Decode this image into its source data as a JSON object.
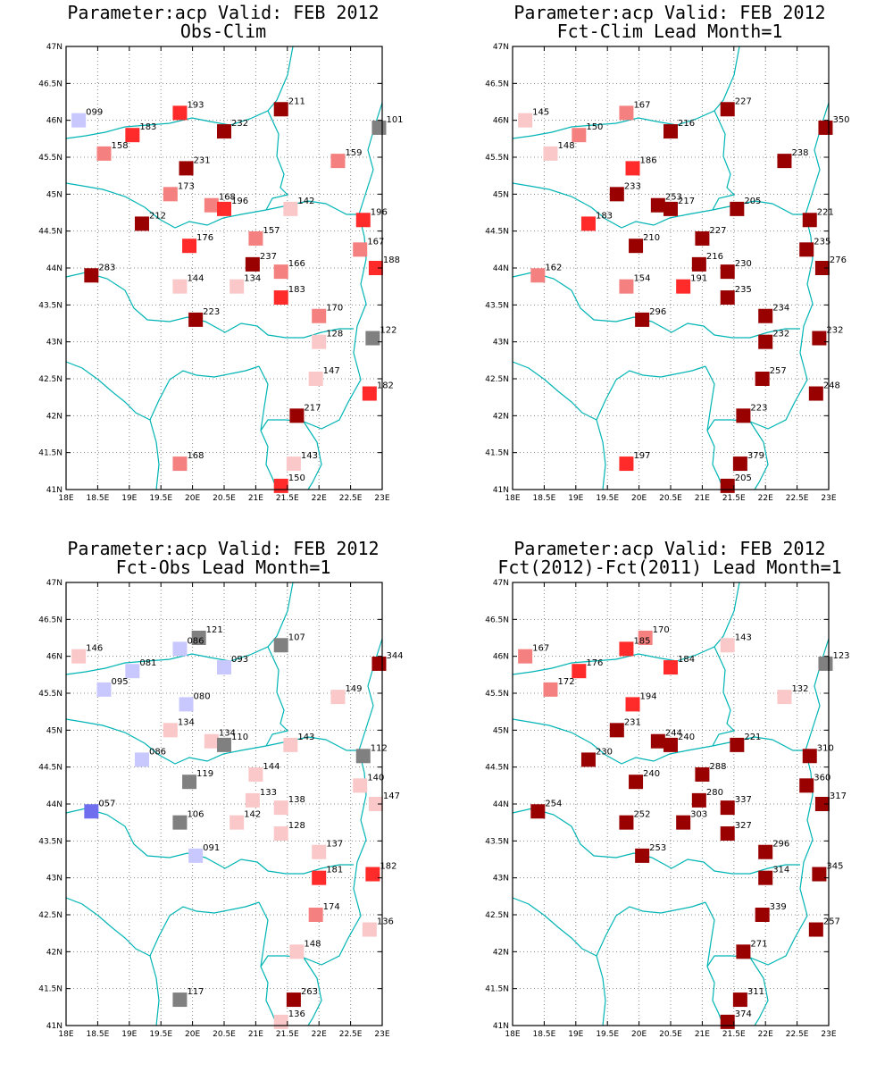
{
  "lon_ticks": [
    "18E",
    "18.5E",
    "19E",
    "19.5E",
    "20E",
    "20.5E",
    "21E",
    "21.5E",
    "22E",
    "22.5E",
    "23E"
  ],
  "lat_ticks": [
    "41N",
    "41.5N",
    "42N",
    "42.5N",
    "43N",
    "43.5N",
    "44N",
    "44.5N",
    "45N",
    "45.5N",
    "46N",
    "46.5N",
    "47N"
  ],
  "colors": {
    "coastline": "#00b4b4",
    "dark_red": "#990000",
    "red": "#ff2a2a",
    "salmon": "#f58080",
    "pink": "#fac8c8",
    "gray": "#808080",
    "lavender": "#c8c8ff",
    "blue": "#6e6eee"
  },
  "chart_data": [
    {
      "type": "map",
      "title": "Parameter:acp Valid: FEB 2012",
      "subtitle": "Obs-Clim",
      "xlim": [
        18,
        23
      ],
      "ylim": [
        41,
        47
      ],
      "stations": [
        {
          "lon": 18.2,
          "lat": 46.0,
          "label": "099",
          "color": "lavender"
        },
        {
          "lon": 19.8,
          "lat": 46.1,
          "label": "193",
          "color": "red"
        },
        {
          "lon": 21.4,
          "lat": 46.15,
          "label": "211",
          "color": "dark_red"
        },
        {
          "lon": 22.95,
          "lat": 45.9,
          "label": "101",
          "color": "gray"
        },
        {
          "lon": 19.05,
          "lat": 45.8,
          "label": "183",
          "color": "red"
        },
        {
          "lon": 20.5,
          "lat": 45.85,
          "label": "232",
          "color": "dark_red"
        },
        {
          "lon": 18.6,
          "lat": 45.55,
          "label": "158",
          "color": "salmon"
        },
        {
          "lon": 22.3,
          "lat": 45.45,
          "label": "159",
          "color": "salmon"
        },
        {
          "lon": 19.9,
          "lat": 45.35,
          "label": "231",
          "color": "dark_red"
        },
        {
          "lon": 19.65,
          "lat": 45.0,
          "label": "173",
          "color": "salmon"
        },
        {
          "lon": 20.3,
          "lat": 44.85,
          "label": "168",
          "color": "salmon"
        },
        {
          "lon": 20.5,
          "lat": 44.8,
          "label": "196",
          "color": "red"
        },
        {
          "lon": 21.55,
          "lat": 44.8,
          "label": "142",
          "color": "pink"
        },
        {
          "lon": 22.7,
          "lat": 44.65,
          "label": "196",
          "color": "red"
        },
        {
          "lon": 19.2,
          "lat": 44.6,
          "label": "212",
          "color": "dark_red"
        },
        {
          "lon": 21.0,
          "lat": 44.4,
          "label": "157",
          "color": "salmon"
        },
        {
          "lon": 19.95,
          "lat": 44.3,
          "label": "176",
          "color": "red"
        },
        {
          "lon": 22.65,
          "lat": 44.25,
          "label": "167",
          "color": "salmon"
        },
        {
          "lon": 20.95,
          "lat": 44.05,
          "label": "237",
          "color": "dark_red"
        },
        {
          "lon": 21.4,
          "lat": 43.95,
          "label": "166",
          "color": "salmon"
        },
        {
          "lon": 22.9,
          "lat": 44.0,
          "label": "188",
          "color": "red"
        },
        {
          "lon": 18.4,
          "lat": 43.9,
          "label": "283",
          "color": "dark_red"
        },
        {
          "lon": 19.8,
          "lat": 43.75,
          "label": "144",
          "color": "pink"
        },
        {
          "lon": 20.7,
          "lat": 43.75,
          "label": "134",
          "color": "pink"
        },
        {
          "lon": 21.4,
          "lat": 43.6,
          "label": "183",
          "color": "red"
        },
        {
          "lon": 22.0,
          "lat": 43.35,
          "label": "170",
          "color": "salmon"
        },
        {
          "lon": 20.05,
          "lat": 43.3,
          "label": "223",
          "color": "dark_red"
        },
        {
          "lon": 22.0,
          "lat": 43.0,
          "label": "128",
          "color": "pink"
        },
        {
          "lon": 22.85,
          "lat": 43.05,
          "label": "122",
          "color": "gray"
        },
        {
          "lon": 21.95,
          "lat": 42.5,
          "label": "147",
          "color": "pink"
        },
        {
          "lon": 22.8,
          "lat": 42.3,
          "label": "182",
          "color": "red"
        },
        {
          "lon": 21.65,
          "lat": 42.0,
          "label": "217",
          "color": "dark_red"
        },
        {
          "lon": 19.8,
          "lat": 41.35,
          "label": "168",
          "color": "salmon"
        },
        {
          "lon": 21.6,
          "lat": 41.35,
          "label": "143",
          "color": "pink"
        },
        {
          "lon": 21.4,
          "lat": 41.05,
          "label": "150",
          "color": "red"
        }
      ]
    },
    {
      "type": "map",
      "title": "Parameter:acp Valid: FEB 2012",
      "subtitle": "Fct-Clim Lead Month=1",
      "xlim": [
        18,
        23
      ],
      "ylim": [
        41,
        47
      ],
      "stations": [
        {
          "lon": 18.2,
          "lat": 46.0,
          "label": "145",
          "color": "pink"
        },
        {
          "lon": 19.8,
          "lat": 46.1,
          "label": "167",
          "color": "salmon"
        },
        {
          "lon": 21.4,
          "lat": 46.15,
          "label": "227",
          "color": "dark_red"
        },
        {
          "lon": 22.95,
          "lat": 45.9,
          "label": "350",
          "color": "dark_red"
        },
        {
          "lon": 19.05,
          "lat": 45.8,
          "label": "150",
          "color": "salmon"
        },
        {
          "lon": 20.5,
          "lat": 45.85,
          "label": "216",
          "color": "dark_red"
        },
        {
          "lon": 18.6,
          "lat": 45.55,
          "label": "148",
          "color": "pink"
        },
        {
          "lon": 22.3,
          "lat": 45.45,
          "label": "238",
          "color": "dark_red"
        },
        {
          "lon": 19.9,
          "lat": 45.35,
          "label": "186",
          "color": "red"
        },
        {
          "lon": 19.65,
          "lat": 45.0,
          "label": "233",
          "color": "dark_red"
        },
        {
          "lon": 20.3,
          "lat": 44.85,
          "label": "253",
          "color": "dark_red"
        },
        {
          "lon": 20.5,
          "lat": 44.8,
          "label": "217",
          "color": "dark_red"
        },
        {
          "lon": 21.55,
          "lat": 44.8,
          "label": "205",
          "color": "dark_red"
        },
        {
          "lon": 22.7,
          "lat": 44.65,
          "label": "221",
          "color": "dark_red"
        },
        {
          "lon": 19.2,
          "lat": 44.6,
          "label": "183",
          "color": "red"
        },
        {
          "lon": 21.0,
          "lat": 44.4,
          "label": "227",
          "color": "dark_red"
        },
        {
          "lon": 19.95,
          "lat": 44.3,
          "label": "210",
          "color": "dark_red"
        },
        {
          "lon": 22.65,
          "lat": 44.25,
          "label": "235",
          "color": "dark_red"
        },
        {
          "lon": 20.95,
          "lat": 44.05,
          "label": "216",
          "color": "dark_red"
        },
        {
          "lon": 21.4,
          "lat": 43.95,
          "label": "230",
          "color": "dark_red"
        },
        {
          "lon": 22.9,
          "lat": 44.0,
          "label": "276",
          "color": "dark_red"
        },
        {
          "lon": 18.4,
          "lat": 43.9,
          "label": "162",
          "color": "salmon"
        },
        {
          "lon": 19.8,
          "lat": 43.75,
          "label": "154",
          "color": "salmon"
        },
        {
          "lon": 20.7,
          "lat": 43.75,
          "label": "191",
          "color": "red"
        },
        {
          "lon": 21.4,
          "lat": 43.6,
          "label": "235",
          "color": "dark_red"
        },
        {
          "lon": 22.0,
          "lat": 43.35,
          "label": "234",
          "color": "dark_red"
        },
        {
          "lon": 20.05,
          "lat": 43.3,
          "label": "296",
          "color": "dark_red"
        },
        {
          "lon": 22.0,
          "lat": 43.0,
          "label": "232",
          "color": "dark_red"
        },
        {
          "lon": 22.85,
          "lat": 43.05,
          "label": "232",
          "color": "dark_red"
        },
        {
          "lon": 21.95,
          "lat": 42.5,
          "label": "257",
          "color": "dark_red"
        },
        {
          "lon": 22.8,
          "lat": 42.3,
          "label": "248",
          "color": "dark_red"
        },
        {
          "lon": 21.65,
          "lat": 42.0,
          "label": "223",
          "color": "dark_red"
        },
        {
          "lon": 19.8,
          "lat": 41.35,
          "label": "197",
          "color": "red"
        },
        {
          "lon": 21.6,
          "lat": 41.35,
          "label": "379",
          "color": "dark_red"
        },
        {
          "lon": 21.4,
          "lat": 41.05,
          "label": "205",
          "color": "dark_red"
        }
      ]
    },
    {
      "type": "map",
      "title": "Parameter:acp Valid: FEB 2012",
      "subtitle": "Fct-Obs Lead Month=1",
      "xlim": [
        18,
        23
      ],
      "ylim": [
        41,
        47
      ],
      "stations": [
        {
          "lon": 18.2,
          "lat": 46.0,
          "label": "146",
          "color": "pink"
        },
        {
          "lon": 20.1,
          "lat": 46.25,
          "label": "121",
          "color": "gray"
        },
        {
          "lon": 19.8,
          "lat": 46.1,
          "label": "086",
          "color": "lavender"
        },
        {
          "lon": 21.4,
          "lat": 46.15,
          "label": "107",
          "color": "gray"
        },
        {
          "lon": 22.95,
          "lat": 45.9,
          "label": "344",
          "color": "dark_red"
        },
        {
          "lon": 19.05,
          "lat": 45.8,
          "label": "081",
          "color": "lavender"
        },
        {
          "lon": 20.5,
          "lat": 45.85,
          "label": "093",
          "color": "lavender"
        },
        {
          "lon": 18.6,
          "lat": 45.55,
          "label": "095",
          "color": "lavender"
        },
        {
          "lon": 22.3,
          "lat": 45.45,
          "label": "149",
          "color": "pink"
        },
        {
          "lon": 19.9,
          "lat": 45.35,
          "label": "080",
          "color": "lavender"
        },
        {
          "lon": 19.65,
          "lat": 45.0,
          "label": "134",
          "color": "pink"
        },
        {
          "lon": 20.3,
          "lat": 44.85,
          "label": "134",
          "color": "pink"
        },
        {
          "lon": 20.5,
          "lat": 44.8,
          "label": "110",
          "color": "gray"
        },
        {
          "lon": 21.55,
          "lat": 44.8,
          "label": "143",
          "color": "pink"
        },
        {
          "lon": 22.7,
          "lat": 44.65,
          "label": "112",
          "color": "gray"
        },
        {
          "lon": 19.2,
          "lat": 44.6,
          "label": "086",
          "color": "lavender"
        },
        {
          "lon": 21.0,
          "lat": 44.4,
          "label": "144",
          "color": "pink"
        },
        {
          "lon": 19.95,
          "lat": 44.3,
          "label": "119",
          "color": "gray"
        },
        {
          "lon": 22.65,
          "lat": 44.25,
          "label": "140",
          "color": "pink"
        },
        {
          "lon": 20.95,
          "lat": 44.05,
          "label": "133",
          "color": "pink"
        },
        {
          "lon": 21.4,
          "lat": 43.95,
          "label": "138",
          "color": "pink"
        },
        {
          "lon": 22.9,
          "lat": 44.0,
          "label": "147",
          "color": "pink"
        },
        {
          "lon": 18.4,
          "lat": 43.9,
          "label": "057",
          "color": "blue"
        },
        {
          "lon": 19.8,
          "lat": 43.75,
          "label": "106",
          "color": "gray"
        },
        {
          "lon": 20.7,
          "lat": 43.75,
          "label": "142",
          "color": "pink"
        },
        {
          "lon": 21.4,
          "lat": 43.6,
          "label": "128",
          "color": "pink"
        },
        {
          "lon": 22.0,
          "lat": 43.35,
          "label": "137",
          "color": "pink"
        },
        {
          "lon": 20.05,
          "lat": 43.3,
          "label": "091",
          "color": "lavender"
        },
        {
          "lon": 22.0,
          "lat": 43.0,
          "label": "181",
          "color": "red"
        },
        {
          "lon": 22.85,
          "lat": 43.05,
          "label": "182",
          "color": "red"
        },
        {
          "lon": 21.95,
          "lat": 42.5,
          "label": "174",
          "color": "salmon"
        },
        {
          "lon": 22.8,
          "lat": 42.3,
          "label": "136",
          "color": "pink"
        },
        {
          "lon": 21.65,
          "lat": 42.0,
          "label": "148",
          "color": "pink"
        },
        {
          "lon": 19.8,
          "lat": 41.35,
          "label": "117",
          "color": "gray"
        },
        {
          "lon": 21.6,
          "lat": 41.35,
          "label": "263",
          "color": "dark_red"
        },
        {
          "lon": 21.4,
          "lat": 41.05,
          "label": "136",
          "color": "pink"
        }
      ]
    },
    {
      "type": "map",
      "title": "Parameter:acp Valid: FEB 2012",
      "subtitle": "Fct(2012)-Fct(2011) Lead Month=1",
      "xlim": [
        18,
        23
      ],
      "ylim": [
        41,
        47
      ],
      "stations": [
        {
          "lon": 18.2,
          "lat": 46.0,
          "label": "167",
          "color": "salmon"
        },
        {
          "lon": 20.1,
          "lat": 46.25,
          "label": "170",
          "color": "salmon"
        },
        {
          "lon": 19.8,
          "lat": 46.1,
          "label": "185",
          "color": "red"
        },
        {
          "lon": 21.4,
          "lat": 46.15,
          "label": "143",
          "color": "pink"
        },
        {
          "lon": 22.95,
          "lat": 45.9,
          "label": "123",
          "color": "gray"
        },
        {
          "lon": 19.05,
          "lat": 45.8,
          "label": "176",
          "color": "red"
        },
        {
          "lon": 20.5,
          "lat": 45.85,
          "label": "184",
          "color": "red"
        },
        {
          "lon": 18.6,
          "lat": 45.55,
          "label": "172",
          "color": "salmon"
        },
        {
          "lon": 22.3,
          "lat": 45.45,
          "label": "132",
          "color": "pink"
        },
        {
          "lon": 19.9,
          "lat": 45.35,
          "label": "194",
          "color": "red"
        },
        {
          "lon": 19.65,
          "lat": 45.0,
          "label": "231",
          "color": "dark_red"
        },
        {
          "lon": 20.3,
          "lat": 44.85,
          "label": "244",
          "color": "dark_red"
        },
        {
          "lon": 20.5,
          "lat": 44.8,
          "label": "240",
          "color": "dark_red"
        },
        {
          "lon": 21.55,
          "lat": 44.8,
          "label": "221",
          "color": "dark_red"
        },
        {
          "lon": 22.7,
          "lat": 44.65,
          "label": "310",
          "color": "dark_red"
        },
        {
          "lon": 19.2,
          "lat": 44.6,
          "label": "230",
          "color": "dark_red"
        },
        {
          "lon": 21.0,
          "lat": 44.4,
          "label": "288",
          "color": "dark_red"
        },
        {
          "lon": 19.95,
          "lat": 44.3,
          "label": "240",
          "color": "dark_red"
        },
        {
          "lon": 22.65,
          "lat": 44.25,
          "label": "360",
          "color": "dark_red"
        },
        {
          "lon": 20.95,
          "lat": 44.05,
          "label": "280",
          "color": "dark_red"
        },
        {
          "lon": 21.4,
          "lat": 43.95,
          "label": "337",
          "color": "dark_red"
        },
        {
          "lon": 22.9,
          "lat": 44.0,
          "label": "317",
          "color": "dark_red"
        },
        {
          "lon": 18.4,
          "lat": 43.9,
          "label": "254",
          "color": "dark_red"
        },
        {
          "lon": 19.8,
          "lat": 43.75,
          "label": "252",
          "color": "dark_red"
        },
        {
          "lon": 20.7,
          "lat": 43.75,
          "label": "303",
          "color": "dark_red"
        },
        {
          "lon": 21.4,
          "lat": 43.6,
          "label": "327",
          "color": "dark_red"
        },
        {
          "lon": 22.0,
          "lat": 43.35,
          "label": "296",
          "color": "dark_red"
        },
        {
          "lon": 20.05,
          "lat": 43.3,
          "label": "253",
          "color": "dark_red"
        },
        {
          "lon": 22.0,
          "lat": 43.0,
          "label": "314",
          "color": "dark_red"
        },
        {
          "lon": 22.85,
          "lat": 43.05,
          "label": "345",
          "color": "dark_red"
        },
        {
          "lon": 21.95,
          "lat": 42.5,
          "label": "339",
          "color": "dark_red"
        },
        {
          "lon": 22.8,
          "lat": 42.3,
          "label": "257",
          "color": "dark_red"
        },
        {
          "lon": 21.65,
          "lat": 42.0,
          "label": "271",
          "color": "dark_red"
        },
        {
          "lon": 21.6,
          "lat": 41.35,
          "label": "311",
          "color": "dark_red"
        },
        {
          "lon": 21.4,
          "lat": 41.05,
          "label": "374",
          "color": "dark_red"
        }
      ]
    }
  ]
}
